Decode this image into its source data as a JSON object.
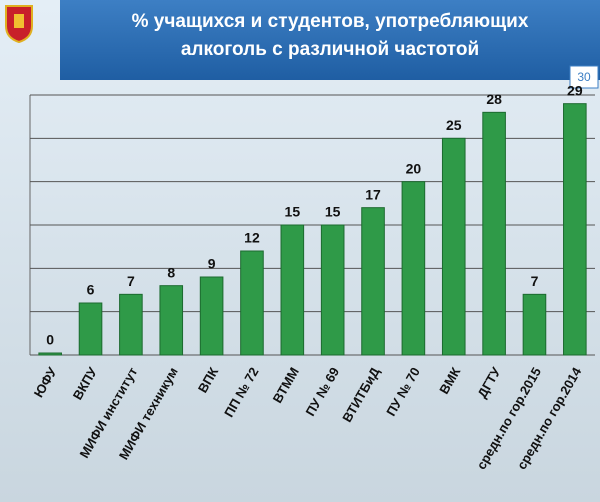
{
  "slide_number": "30",
  "chart_data": {
    "type": "bar",
    "title": [
      "% учащихся и студентов, употребляющих",
      "алкоголь с различной частотой"
    ],
    "categories": [
      "ЮФУ",
      "ВКПУ",
      "МИФИ институт",
      "МИФИ техникум",
      "ВПК",
      "ПП № 72",
      "ВТММ",
      "ПУ № 69",
      "ВТИТБиД",
      "ПУ № 70",
      "ВМК",
      "ДГТУ",
      "средн.по гор.2015",
      "средн.по гор.2014"
    ],
    "values": [
      0,
      6,
      7,
      8,
      9,
      12,
      15,
      15,
      17,
      20,
      25,
      28,
      7,
      29
    ],
    "color": "#2f9a48",
    "ylim": [
      0,
      30
    ],
    "yticks": [
      0,
      5,
      10,
      15,
      20,
      25,
      30
    ],
    "grid": true
  }
}
